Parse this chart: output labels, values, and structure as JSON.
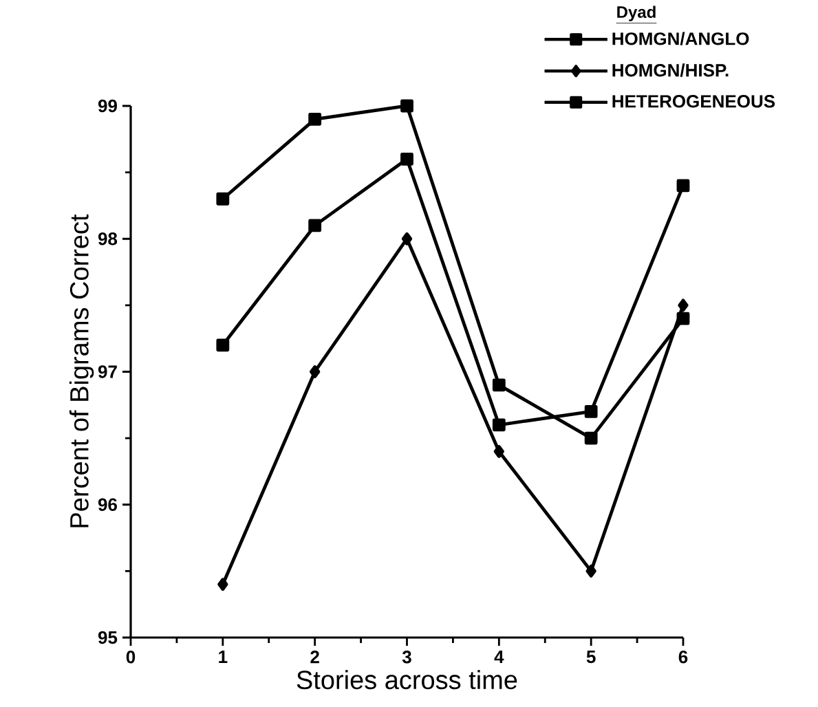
{
  "chart_data": {
    "type": "line",
    "xlabel": "Stories across time",
    "ylabel": "Percent of Bigrams Correct",
    "legend_title": "Dyad",
    "legend": "top right",
    "grid": false,
    "line_style": "solid",
    "x": [
      1,
      2,
      3,
      4,
      5,
      6
    ],
    "xlim": [
      0,
      6
    ],
    "xticks": [
      0,
      1,
      2,
      3,
      4,
      5,
      6
    ],
    "ylim": [
      95,
      99
    ],
    "yticks": [
      95,
      96,
      97,
      98,
      99
    ],
    "series": [
      {
        "name": "HOMGN/ANGLO",
        "color": "#000000",
        "marker": "square",
        "values": [
          98.3,
          98.9,
          99.0,
          96.9,
          96.5,
          97.4
        ]
      },
      {
        "name": "HOMGN/HISP.",
        "color": "#000000",
        "marker": "diamond",
        "values": [
          95.4,
          97.0,
          98.0,
          96.4,
          95.5,
          97.5
        ]
      },
      {
        "name": "HETEROGENEOUS",
        "color": "#000000",
        "marker": "square",
        "values": [
          97.2,
          98.1,
          98.6,
          96.6,
          96.7,
          98.4
        ]
      }
    ]
  }
}
